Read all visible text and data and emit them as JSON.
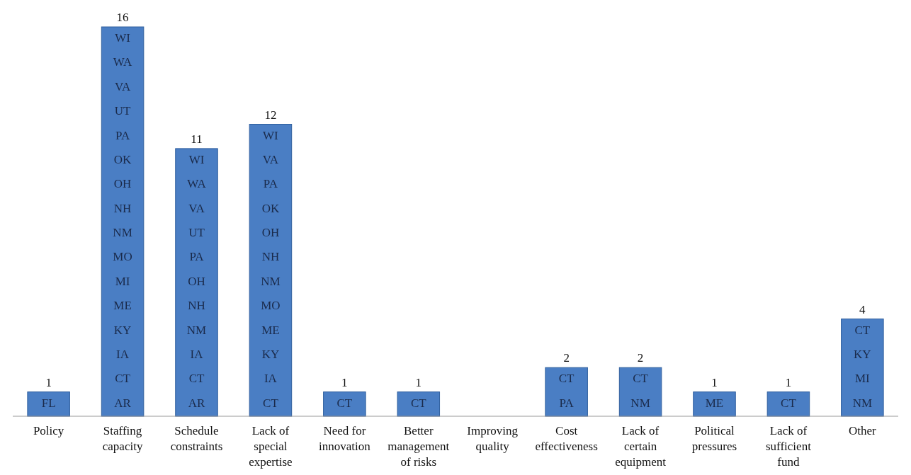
{
  "chart_data": {
    "type": "bar",
    "categories": [
      "Policy",
      "Staffing capacity",
      "Schedule constraints",
      "Lack of special expertise",
      "Need for innovation",
      "Better management of risks",
      "Improving quality",
      "Cost effectiveness",
      "Lack of certain equipment",
      "Political pressures",
      "Lack of sufficient fund",
      "Other"
    ],
    "values": [
      1,
      16,
      11,
      12,
      1,
      1,
      0,
      2,
      2,
      1,
      1,
      4
    ],
    "value_labels": [
      "1",
      "16",
      "11",
      "12",
      "1",
      "1",
      null,
      "2",
      "2",
      "1",
      "1",
      "4"
    ],
    "color": "#4a7ec4",
    "ylim": [
      0,
      16
    ],
    "tick_labels": "x",
    "annotations": [
      "FL",
      "WI",
      "WA",
      "VA",
      "UT",
      "PA",
      "OK",
      "OH",
      "NH",
      "NM",
      "MO",
      "MI",
      "ME",
      "KY",
      "IA",
      "CT",
      "AR",
      "WI",
      "WA",
      "VA",
      "UT",
      "PA",
      "OH",
      "NH",
      "NM",
      "IA",
      "CT",
      "AR",
      "WI",
      "VA",
      "PA",
      "OK",
      "OH",
      "NH",
      "NM",
      "MO",
      "ME",
      "KY",
      "IA",
      "CT",
      "CT",
      "CT",
      "CT",
      "PA",
      "CT",
      "NM",
      "ME",
      "CT",
      "CT",
      "KY",
      "MI",
      "NM"
    ]
  }
}
